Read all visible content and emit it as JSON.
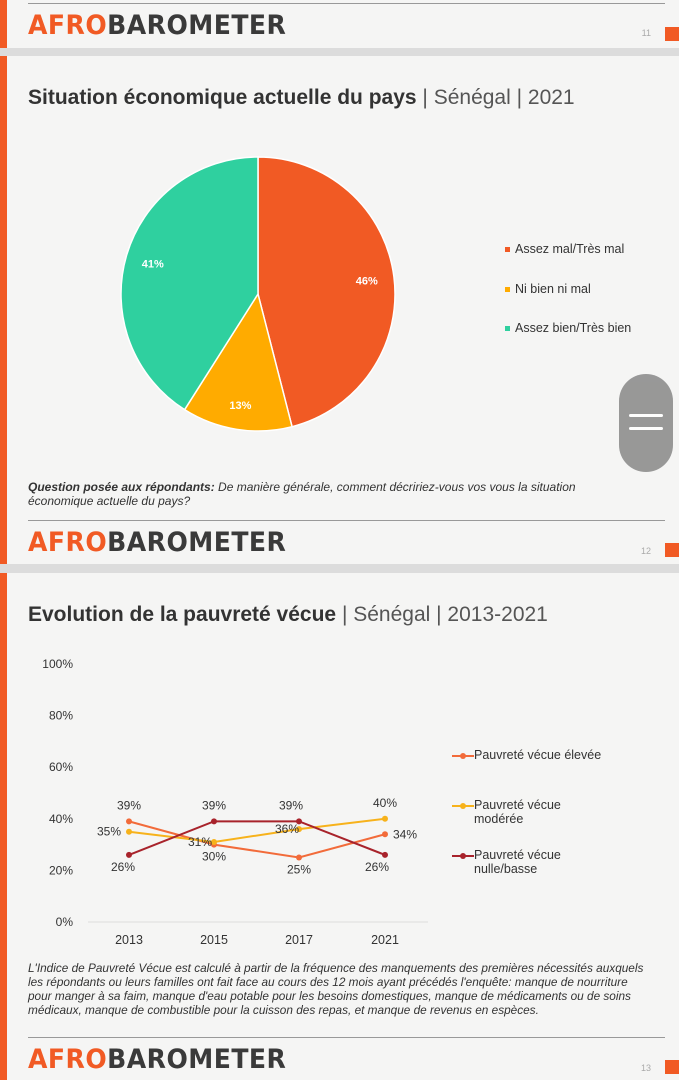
{
  "brand": {
    "logo_a": "AFRO",
    "logo_b": "BAROMETER",
    "accent": "#f15a24"
  },
  "slides": [
    {
      "page": "11"
    },
    {
      "page": "12",
      "title_bold": "Situation économique actuelle du pays",
      "title_rest": " | Sénégal | 2021",
      "note_bold": "Question posée aux répondants:",
      "note_text": " De manière générale, comment décririez-vous vos vous la situation économique actuelle du pays?"
    },
    {
      "page": "13",
      "title_bold": "Evolution de la pauvreté vécue",
      "title_rest": " | Sénégal | 2013-2021",
      "note_text": "L'Indice de Pauvreté Vécue est calculé à partir de la fréquence des manquements des premières nécessités auxquels les répondants ou leurs familles ont fait face au cours des 12 mois ayant précédés l'enquête: manque de nourriture pour manger à sa faim, manque d'eau potable pour les besoins domestiques, manque de médicaments ou de soins médicaux, manque de combustible pour la cuisson des repas, et manque de revenus en espèces."
    }
  ],
  "chart_data": [
    {
      "type": "pie",
      "title": "Situation économique actuelle du pays | Sénégal | 2021",
      "legend_position": "right",
      "slices": [
        {
          "label": "Assez mal/Très mal",
          "value": 46,
          "display": "46%",
          "color": "#f15a24"
        },
        {
          "label": "Ni bien ni mal",
          "value": 13,
          "display": "13%",
          "color": "#ffab00"
        },
        {
          "label": "Assez bien/Très bien",
          "value": 41,
          "display": "41%",
          "color": "#2fd09f"
        }
      ]
    },
    {
      "type": "line",
      "title": "Evolution de la pauvreté vécue | Sénégal | 2013-2021",
      "legend_position": "right",
      "categories": [
        "2013",
        "2015",
        "2017",
        "2021"
      ],
      "ylim": [
        0,
        100
      ],
      "yticks": [
        "0%",
        "20%",
        "40%",
        "60%",
        "80%",
        "100%"
      ],
      "series": [
        {
          "name": "Pauvreté vécue élevée",
          "values": [
            39,
            30,
            25,
            34
          ],
          "color": "#f26b3a"
        },
        {
          "name": "Pauvreté vécue modérée",
          "values": [
            35,
            31,
            36,
            40
          ],
          "color": "#f7b21b"
        },
        {
          "name": "Pauvreté vécue nulle/basse",
          "values": [
            26,
            39,
            39,
            26
          ],
          "color": "#a8232b"
        }
      ]
    }
  ]
}
